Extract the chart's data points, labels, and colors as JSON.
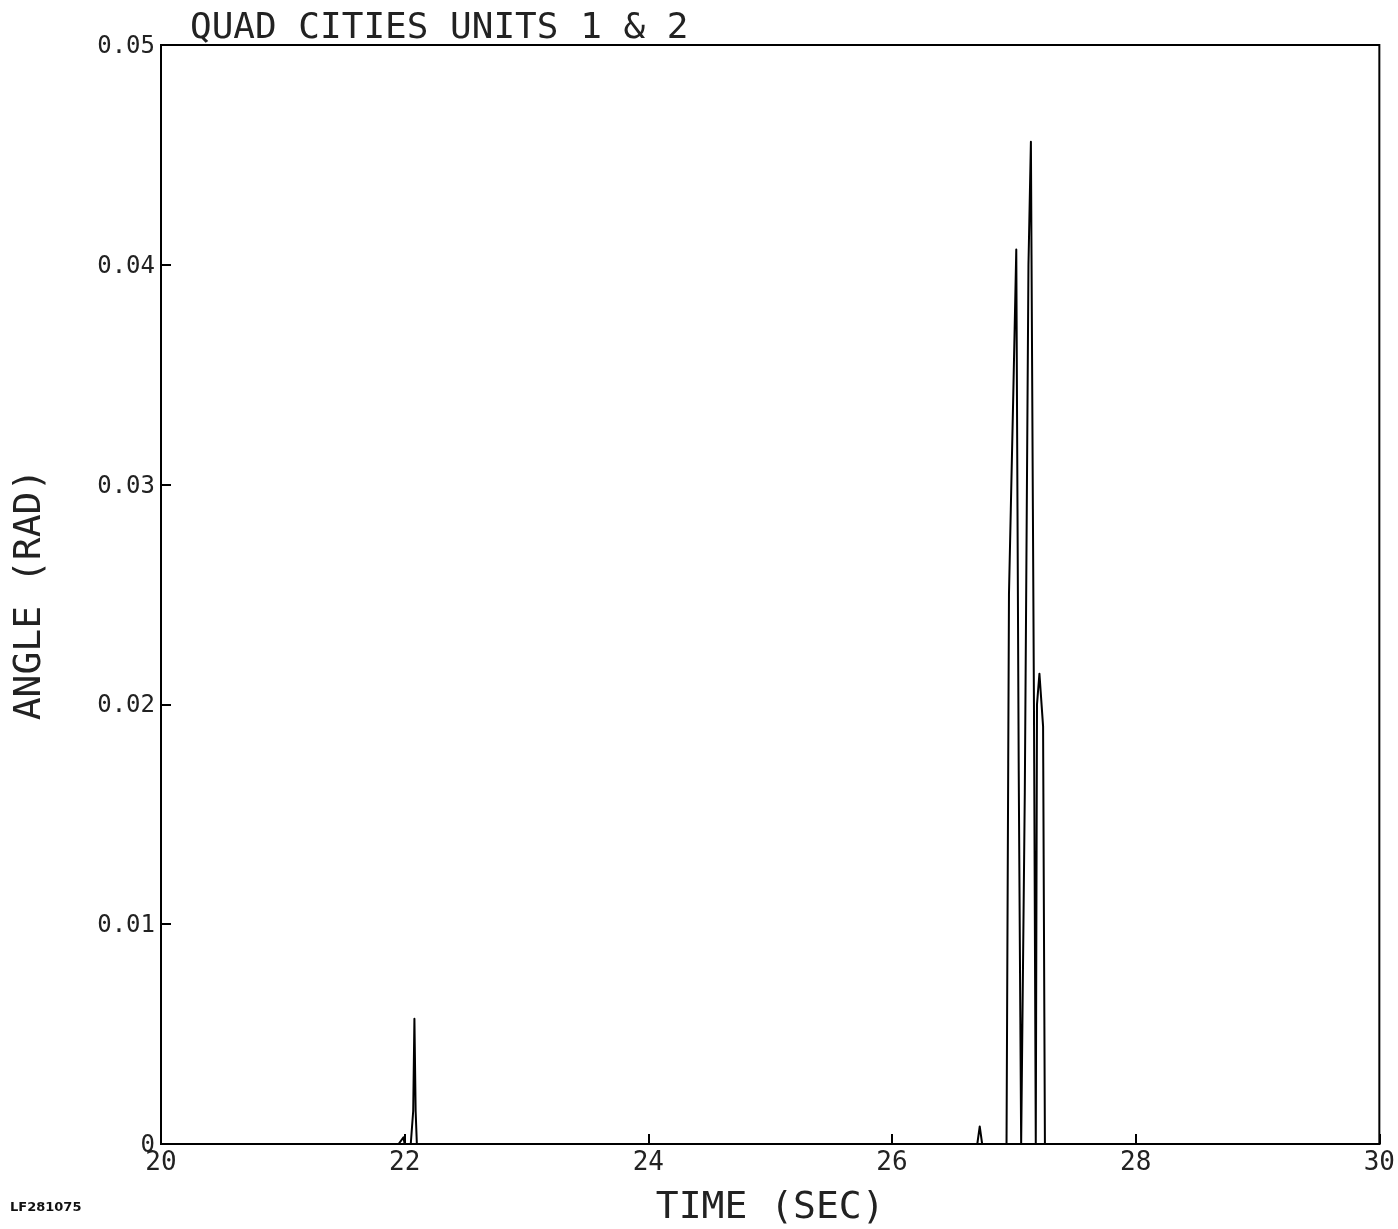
{
  "chart_data": {
    "type": "line",
    "title": "QUAD CITIES UNITS 1 & 2",
    "xlabel": "TIME (SEC)",
    "ylabel": "ANGLE (RAD)",
    "annotations": [
      "LF281075"
    ],
    "series": [
      {
        "color": "#000000",
        "x": [
          20,
          21.95,
          21.99,
          22.0,
          22.02,
          22.05,
          22.07,
          22.08,
          22.09,
          22.1,
          22.12,
          22.2,
          24,
          26,
          26.7,
          26.72,
          26.74,
          26.94,
          26.96,
          26.995,
          27.02,
          27.04,
          27.06,
          27.09,
          27.12,
          27.14,
          27.165,
          27.18,
          27.19,
          27.21,
          27.24,
          27.255,
          30
        ],
        "values": [
          0,
          0,
          0.0003,
          0,
          0,
          0,
          0.0015,
          0.0057,
          0.0015,
          0,
          0,
          0,
          0,
          0,
          0,
          0.0008,
          0,
          0,
          0.025,
          0.034,
          0.0407,
          0.017,
          0,
          0.016,
          0.04,
          0.0456,
          0.02,
          0,
          0.02,
          0.0214,
          0.019,
          0,
          0
        ]
      }
    ],
    "xlim": [
      20,
      30
    ],
    "xticks": [
      20,
      22,
      24,
      26,
      28,
      30
    ],
    "ylim": [
      0,
      0.05
    ],
    "yticks": [
      0,
      0.01,
      0.02,
      0.03,
      0.04,
      0.05
    ],
    "grid": false,
    "marker": "none",
    "line_style": "solid"
  }
}
